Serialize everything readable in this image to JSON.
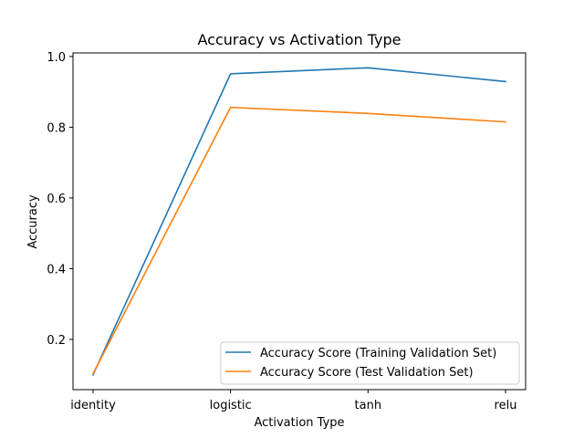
{
  "chart_data": {
    "type": "line",
    "title": "Accuracy vs Activation Type",
    "xlabel": "Activation Type",
    "ylabel": "Accuracy",
    "categories": [
      "identity",
      "logistic",
      "tanh",
      "relu"
    ],
    "series": [
      {
        "name": "Accuracy Score (Training Validation Set)",
        "values": [
          0.1,
          0.951,
          0.968,
          0.929
        ],
        "color": "#1f77b4"
      },
      {
        "name": "Accuracy Score (Test Validation Set)",
        "values": [
          0.103,
          0.856,
          0.839,
          0.815
        ],
        "color": "#ff7f0e"
      }
    ],
    "ylim": [
      0.058,
      1.01
    ],
    "yticks": [
      0.2,
      0.4,
      0.6,
      0.8,
      1.0
    ],
    "ytick_labels": [
      "0.2",
      "0.4",
      "0.6",
      "0.8",
      "1.0"
    ],
    "grid": false,
    "legend_position": "lower-right"
  }
}
